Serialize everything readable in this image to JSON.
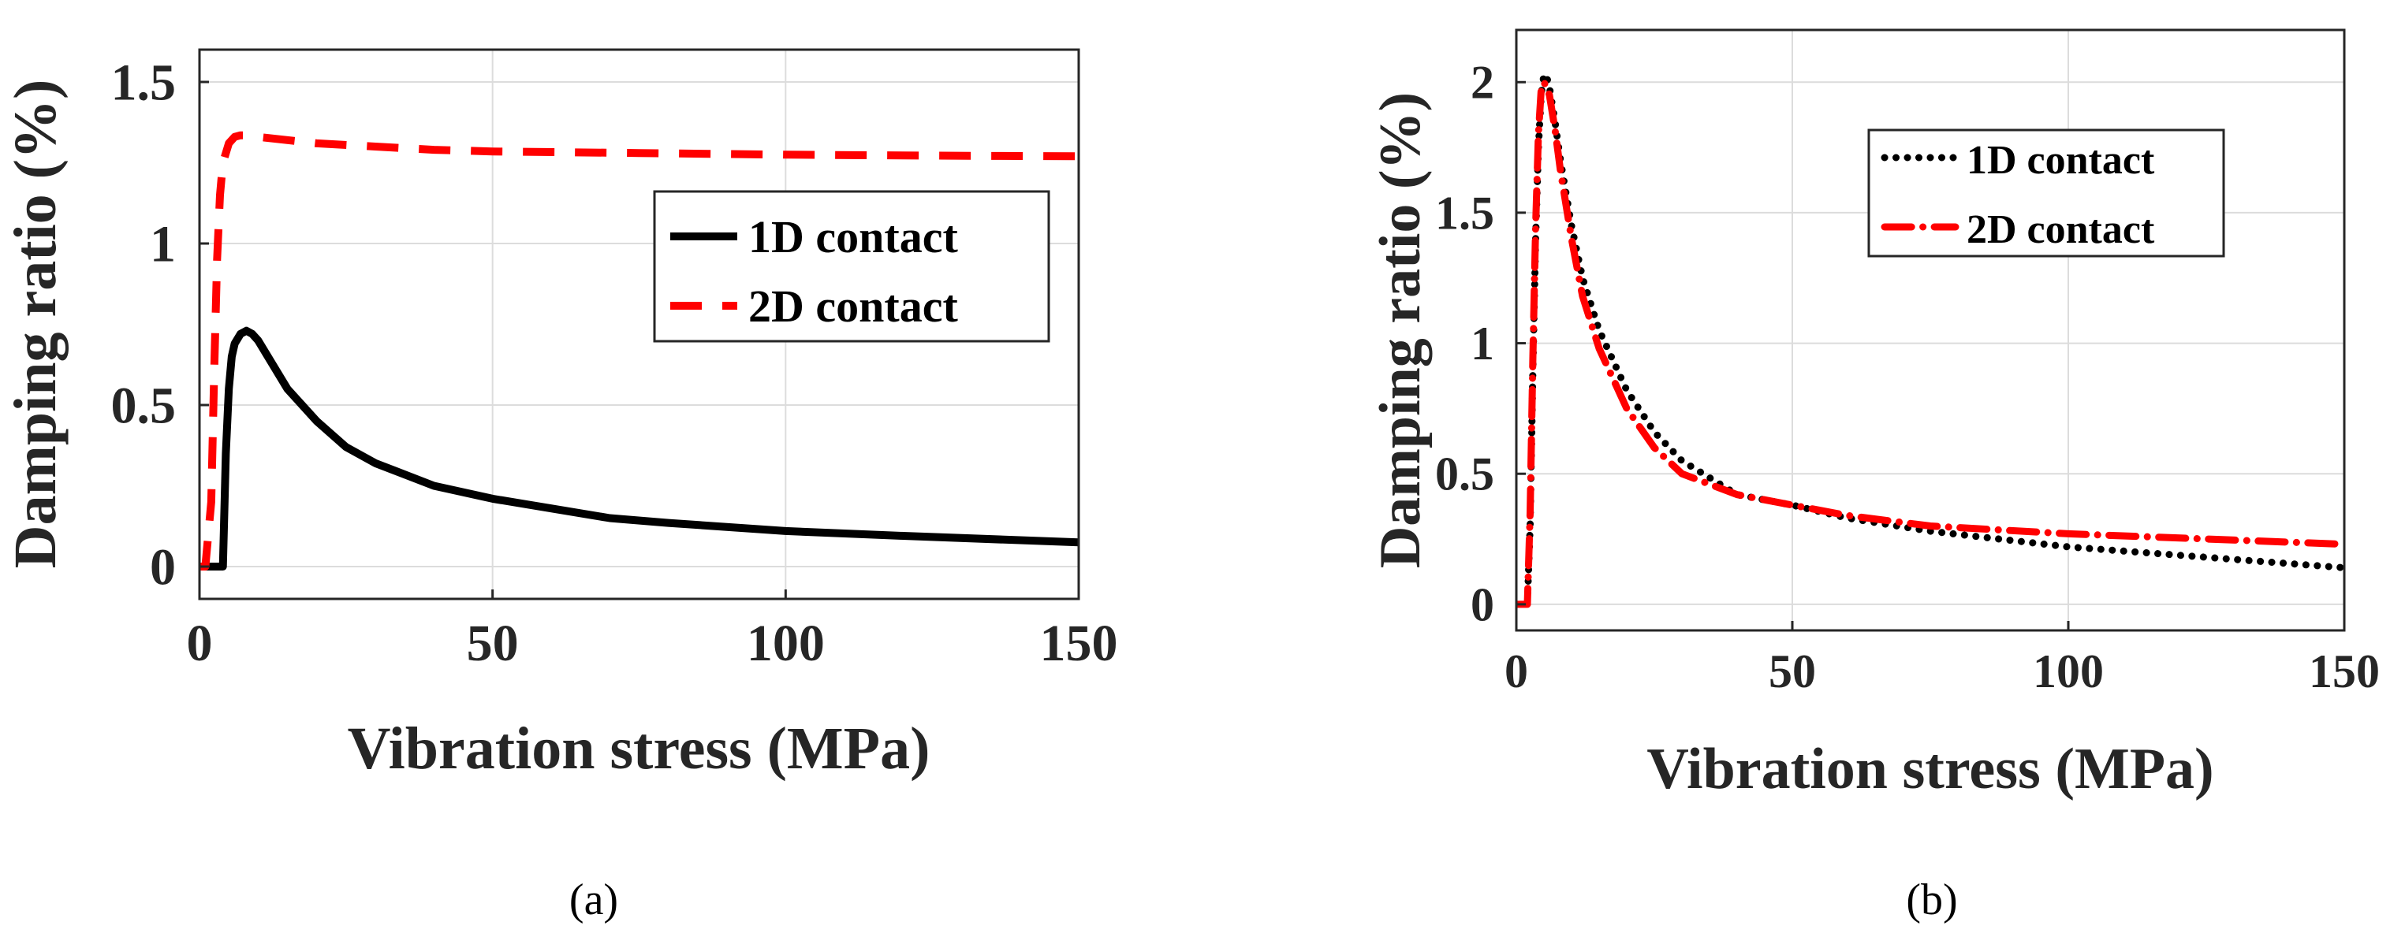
{
  "colors": {
    "black_series": "#000000",
    "red_series": "#ff0000",
    "axis": "#262626",
    "grid": "#dcdcdc"
  },
  "chart_data": [
    {
      "id": "a",
      "type": "line",
      "caption": "(a)",
      "xlabel": "Vibration stress (MPa)",
      "ylabel": "Damping ratio (%)",
      "xlim": [
        0,
        150
      ],
      "ylim": [
        -0.1,
        1.6
      ],
      "xticks": [
        0,
        50,
        100,
        150
      ],
      "xtick_labels": [
        "0",
        "50",
        "100",
        "150"
      ],
      "yticks": [
        0,
        0.5,
        1,
        1.5
      ],
      "ytick_labels": [
        "0",
        "0.5",
        "1",
        "1.5"
      ],
      "grid": true,
      "legend_position": "top-right",
      "series": [
        {
          "name": "1D contact",
          "style": "solid",
          "color": "#000000",
          "x": [
            0,
            4,
            4.5,
            5,
            5.5,
            6,
            7,
            8,
            9,
            10,
            12,
            15,
            20,
            25,
            30,
            40,
            50,
            60,
            70,
            80,
            100,
            120,
            150
          ],
          "y": [
            0,
            0,
            0.35,
            0.55,
            0.65,
            0.69,
            0.72,
            0.73,
            0.72,
            0.7,
            0.64,
            0.55,
            0.45,
            0.37,
            0.32,
            0.25,
            0.21,
            0.18,
            0.15,
            0.135,
            0.11,
            0.095,
            0.075
          ]
        },
        {
          "name": "2D contact",
          "style": "dashed",
          "color": "#ff0000",
          "x": [
            0,
            1,
            2,
            2.5,
            3,
            3.5,
            4,
            5,
            6,
            7,
            8,
            10,
            15,
            20,
            30,
            40,
            50,
            75,
            100,
            125,
            150
          ],
          "y": [
            0,
            0,
            0.2,
            0.6,
            0.95,
            1.15,
            1.25,
            1.31,
            1.33,
            1.335,
            1.335,
            1.33,
            1.32,
            1.31,
            1.3,
            1.29,
            1.285,
            1.28,
            1.275,
            1.272,
            1.27
          ]
        }
      ]
    },
    {
      "id": "b",
      "type": "line",
      "caption": "(b)",
      "xlabel": "Vibration stress (MPa)",
      "ylabel": "Damping ratio (%)",
      "xlim": [
        0,
        150
      ],
      "ylim": [
        -0.1,
        2.2
      ],
      "xticks": [
        0,
        50,
        100,
        150
      ],
      "xtick_labels": [
        "0",
        "50",
        "100",
        "150"
      ],
      "yticks": [
        0,
        0.5,
        1,
        1.5,
        2
      ],
      "ytick_labels": [
        "0",
        "0.5",
        "1",
        "1.5",
        "2"
      ],
      "grid": true,
      "legend_position": "top-right",
      "series": [
        {
          "name": "1D contact",
          "style": "dotted",
          "color": "#000000",
          "x": [
            0,
            2,
            2.5,
            3,
            3.5,
            4,
            4.5,
            5,
            5.5,
            6,
            7,
            8,
            10,
            12,
            15,
            20,
            25,
            30,
            40,
            50,
            60,
            75,
            100,
            125,
            150
          ],
          "y": [
            0,
            0,
            0.3,
            0.9,
            1.4,
            1.75,
            1.95,
            2.03,
            2.02,
            1.98,
            1.85,
            1.7,
            1.45,
            1.25,
            1.05,
            0.82,
            0.66,
            0.55,
            0.42,
            0.38,
            0.33,
            0.28,
            0.22,
            0.18,
            0.14
          ]
        },
        {
          "name": "2D contact",
          "style": "dashdot",
          "color": "#ff0000",
          "x": [
            0,
            2,
            2.5,
            3,
            3.5,
            4,
            4.5,
            5,
            5.5,
            6,
            7,
            8,
            10,
            12,
            15,
            20,
            25,
            30,
            40,
            50,
            60,
            75,
            100,
            125,
            150
          ],
          "y": [
            0,
            0,
            0.35,
            0.95,
            1.45,
            1.8,
            1.97,
            2.0,
            1.98,
            1.95,
            1.82,
            1.66,
            1.4,
            1.18,
            0.98,
            0.75,
            0.6,
            0.5,
            0.42,
            0.38,
            0.34,
            0.3,
            0.27,
            0.25,
            0.23
          ]
        }
      ]
    }
  ]
}
